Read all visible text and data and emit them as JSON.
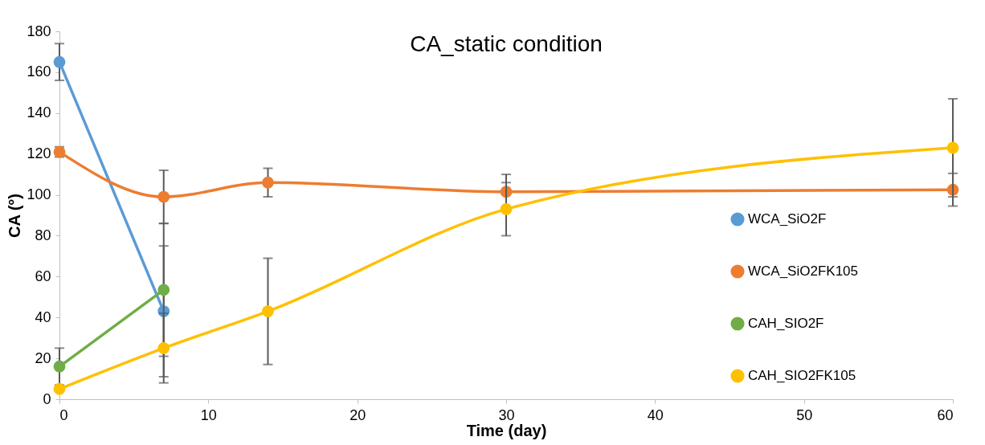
{
  "chart_data": {
    "type": "line",
    "title": "CA_static condition",
    "xlabel": "Time (day)",
    "ylabel": "CA (°)",
    "xlim": [
      0,
      60
    ],
    "xticks": [
      0,
      10,
      20,
      30,
      40,
      50,
      60
    ],
    "ylim": [
      0,
      180
    ],
    "yticks": [
      0,
      20,
      40,
      60,
      80,
      100,
      120,
      140,
      160,
      180
    ],
    "grid": false,
    "legend": "right",
    "marker": "circle",
    "line_style": "solid",
    "series": [
      {
        "name": "WCA_SiO2F",
        "color": "#5b9bd5",
        "x": [
          0,
          7
        ],
        "values": [
          165,
          43
        ],
        "errors": [
          9,
          32
        ]
      },
      {
        "name": "WCA_SiO2FK105",
        "color": "#ed7d31",
        "x": [
          0,
          7,
          14,
          30,
          60
        ],
        "values": [
          121,
          99,
          106,
          101.5,
          102.5
        ],
        "errors": [
          2.5,
          13,
          7,
          8.5,
          8
        ]
      },
      {
        "name": "CAH_SIO2F",
        "color": "#70ad47",
        "x": [
          0,
          7
        ],
        "values": [
          16,
          53.5
        ],
        "errors": [
          9,
          32.5
        ]
      },
      {
        "name": "CAH_SIO2FK105",
        "color": "#ffc000",
        "x": [
          0,
          7,
          14,
          30,
          60
        ],
        "values": [
          5,
          25,
          43,
          93,
          123
        ],
        "errors": [
          null,
          17,
          26,
          13,
          24
        ]
      }
    ]
  }
}
